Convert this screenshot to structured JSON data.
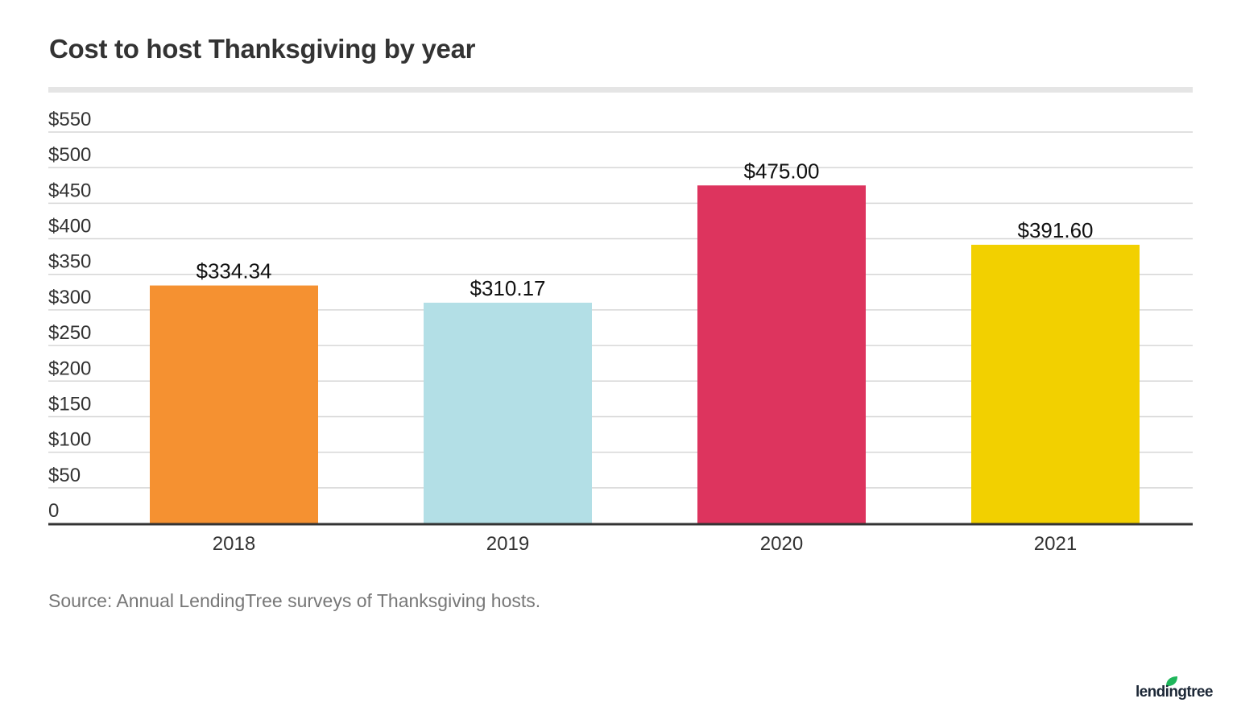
{
  "chart_data": {
    "type": "bar",
    "title": "Cost to host Thanksgiving by year",
    "categories": [
      "2018",
      "2019",
      "2020",
      "2021"
    ],
    "values": [
      334.34,
      310.17,
      475.0,
      391.6
    ],
    "data_labels": [
      "$334.34",
      "$310.17",
      "$475.00",
      "$391.60"
    ],
    "colors": [
      "#f59131",
      "#b3dfe6",
      "#dd345e",
      "#f2d000"
    ],
    "ylim": [
      0,
      550
    ],
    "yticks": [
      0,
      50,
      100,
      150,
      200,
      250,
      300,
      350,
      400,
      450,
      500,
      550
    ],
    "ytick_labels": [
      "0",
      "$50",
      "$100",
      "$150",
      "$200",
      "$250",
      "$300",
      "$350",
      "$400",
      "$450",
      "$500",
      "$550"
    ],
    "grid": true,
    "xlabel": "",
    "ylabel": ""
  },
  "source": "Source: Annual LendingTree surveys of Thanksgiving hosts.",
  "logo": {
    "text": "lendingtree",
    "leaf_color": "#1fb65b",
    "text_color": "#1c2736"
  }
}
